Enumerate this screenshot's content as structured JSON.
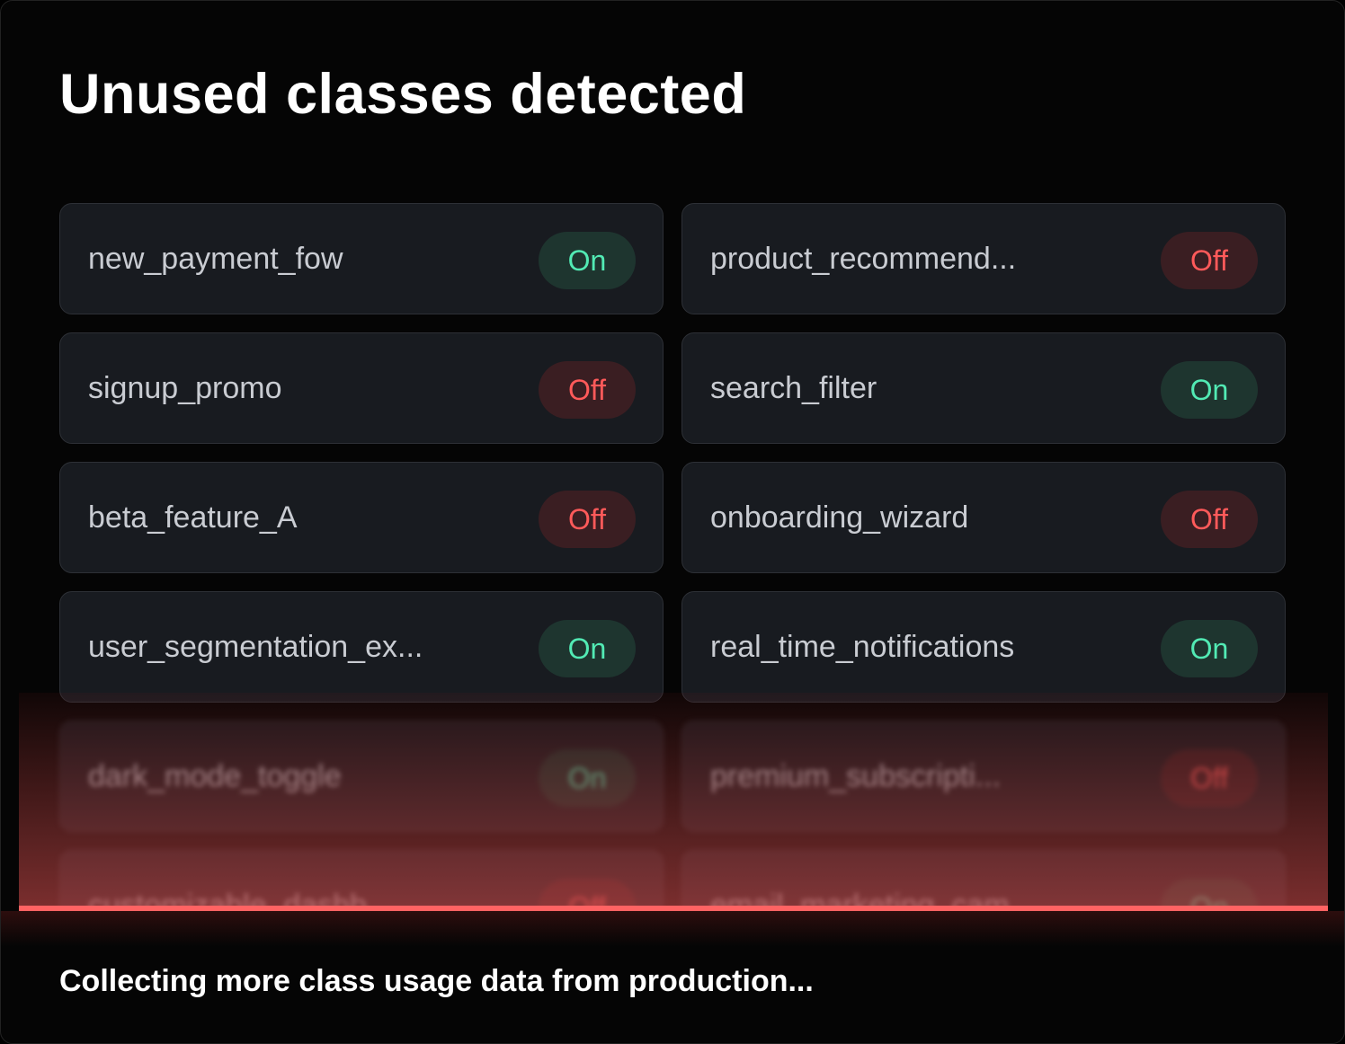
{
  "title": "Unused classes detected",
  "classes": [
    {
      "name": "new_payment_fow",
      "status": "On"
    },
    {
      "name": "product_recommend...",
      "status": "Off"
    },
    {
      "name": "signup_promo",
      "status": "Off"
    },
    {
      "name": "search_filter",
      "status": "On"
    },
    {
      "name": "beta_feature_A",
      "status": "Off"
    },
    {
      "name": "onboarding_wizard",
      "status": "Off"
    },
    {
      "name": "user_segmentation_ex...",
      "status": "On"
    },
    {
      "name": "real_time_notifications",
      "status": "On"
    }
  ],
  "pending_classes": [
    {
      "name": "dark_mode_toggle",
      "status": "On"
    },
    {
      "name": "premium_subscripti...",
      "status": "Off"
    },
    {
      "name": "customizable_dashb...",
      "status": "Off"
    },
    {
      "name": "email_marketing_cam...",
      "status": "On"
    }
  ],
  "footer": "Collecting more class usage data from production...",
  "colors": {
    "on_text": "#52eab4",
    "on_bg": "#1e352f",
    "off_text": "#ff5a5a",
    "off_bg": "#3a1e22",
    "progress_line": "#ff6363"
  }
}
